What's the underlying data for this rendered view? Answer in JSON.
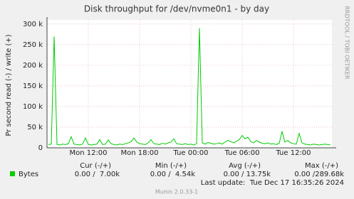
{
  "chart_data": {
    "type": "line",
    "title": "Disk throughput for /dev/nvme0n1 - by day",
    "y_label": "Pr second read (-) / write (+)",
    "side_note": "RRDTOOL / TOBI OETIKER",
    "categories": [
      null,
      null,
      null,
      null,
      null,
      null,
      null,
      null,
      null,
      null,
      null,
      null,
      null,
      null,
      "Mon 12:00",
      null,
      null,
      null,
      null,
      null,
      null,
      null,
      null,
      null,
      null,
      null,
      null,
      null,
      null,
      null,
      null,
      null,
      "Mon 18:00",
      null,
      null,
      null,
      null,
      null,
      null,
      null,
      null,
      null,
      null,
      null,
      null,
      null,
      null,
      null,
      null,
      null,
      "Tue 00:00",
      null,
      null,
      null,
      null,
      null,
      null,
      null,
      null,
      null,
      null,
      null,
      null,
      null,
      null,
      null,
      null,
      null,
      "Tue 06:00",
      null,
      null,
      null,
      null,
      null,
      null,
      null,
      null,
      null,
      null,
      null,
      null,
      null,
      null,
      null,
      null,
      null,
      "Tue 12:00",
      null,
      null,
      null,
      null,
      null,
      null,
      null,
      null,
      null,
      null,
      null,
      null,
      null
    ],
    "series": [
      {
        "name": "Bytes",
        "color": "#00cc00",
        "values": [
          8000,
          9000,
          270000,
          8000,
          7000,
          9000,
          8000,
          10000,
          27000,
          9000,
          8000,
          7000,
          9000,
          24000,
          8000,
          7000,
          8000,
          9000,
          20000,
          8000,
          9000,
          19000,
          10000,
          8000,
          7000,
          9000,
          8000,
          10000,
          12000,
          15000,
          24000,
          14000,
          10000,
          9000,
          8000,
          12000,
          20000,
          10000,
          9000,
          8000,
          11000,
          9000,
          12000,
          14000,
          22000,
          10000,
          9000,
          8000,
          10000,
          8000,
          9000,
          7000,
          10000,
          290000,
          12000,
          9000,
          13000,
          11000,
          9000,
          10000,
          12000,
          9000,
          14000,
          18000,
          15000,
          12000,
          16000,
          20000,
          30000,
          22000,
          26000,
          15000,
          12000,
          18000,
          14000,
          11000,
          10000,
          12000,
          9000,
          10000,
          8000,
          11000,
          40000,
          14000,
          18000,
          12000,
          10000,
          9000,
          35000,
          12000,
          9000,
          8000,
          7000,
          9000,
          8000,
          7000,
          8000,
          9000,
          8000,
          7000
        ]
      }
    ],
    "ylim": [
      0,
      310000
    ],
    "yticks": [
      0,
      {
        "value": 50000,
        "label": "50 k"
      },
      {
        "value": 100000,
        "label": "100 k"
      },
      {
        "value": 150000,
        "label": "150 k"
      },
      {
        "value": 200000,
        "label": "200 k"
      },
      {
        "value": 250000,
        "label": "250 k"
      },
      {
        "value": 300000,
        "label": "300 k"
      }
    ],
    "grid": true,
    "legend_headers": [
      "Cur (-/+)",
      "Min (-/+)",
      "Avg (-/+)",
      "Max (-/+)"
    ],
    "legend_values": [
      "0.00 /  7.00k",
      "0.00 /  4.54k",
      "0.00 / 13.75k",
      "0.00 /289.68k"
    ],
    "last_update": "Last update:  Tue Dec 17 16:35:26 2024",
    "footer": "Munin 2.0.33-1"
  }
}
